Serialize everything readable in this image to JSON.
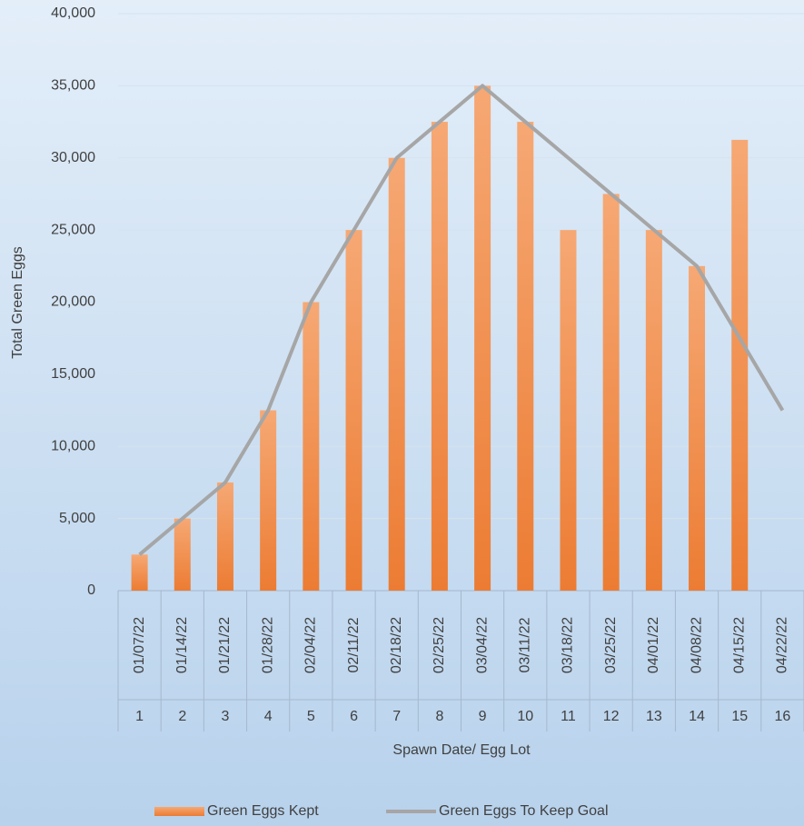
{
  "chart_data": {
    "type": "bar-line",
    "y_axis_label": "Total Green Eggs",
    "x_axis_label": "Spawn Date/ Egg Lot",
    "categories": [
      "01/07/22",
      "01/14/22",
      "01/21/22",
      "01/28/22",
      "02/04/22",
      "02/11/22",
      "02/18/22",
      "02/25/22",
      "03/04/22",
      "03/11/22",
      "03/18/22",
      "03/25/22",
      "04/01/22",
      "04/08/22",
      "04/15/22",
      "04/22/22"
    ],
    "lots": [
      1,
      2,
      3,
      4,
      5,
      6,
      7,
      8,
      9,
      10,
      11,
      12,
      13,
      14,
      15,
      16
    ],
    "series": [
      {
        "name": "Green Eggs Kept",
        "type": "bar",
        "color": "#ed7d31",
        "values": [
          2500,
          5000,
          7500,
          12500,
          20000,
          25000,
          30000,
          32500,
          35000,
          32500,
          25000,
          27500,
          25000,
          22500,
          31250,
          null
        ]
      },
      {
        "name": "Green Eggs To Keep Goal",
        "type": "line",
        "color": "#a6a6a6",
        "values": [
          2500,
          5000,
          7500,
          12500,
          20000,
          25000,
          30000,
          32500,
          35000,
          32500,
          30000,
          27500,
          25000,
          22500,
          17500,
          12500
        ]
      }
    ],
    "ylim": [
      0,
      40000
    ],
    "yticks": [
      {
        "value": 0,
        "label": "0"
      },
      {
        "value": 5000,
        "label": "5,000"
      },
      {
        "value": 10000,
        "label": "10,000"
      },
      {
        "value": 15000,
        "label": "15,000"
      },
      {
        "value": 20000,
        "label": "20,000"
      },
      {
        "value": 25000,
        "label": "25,000"
      },
      {
        "value": 30000,
        "label": "30,000"
      },
      {
        "value": 35000,
        "label": "35,000"
      },
      {
        "value": 40000,
        "label": "40,000"
      }
    ],
    "grid": true,
    "legend": "bottom"
  }
}
